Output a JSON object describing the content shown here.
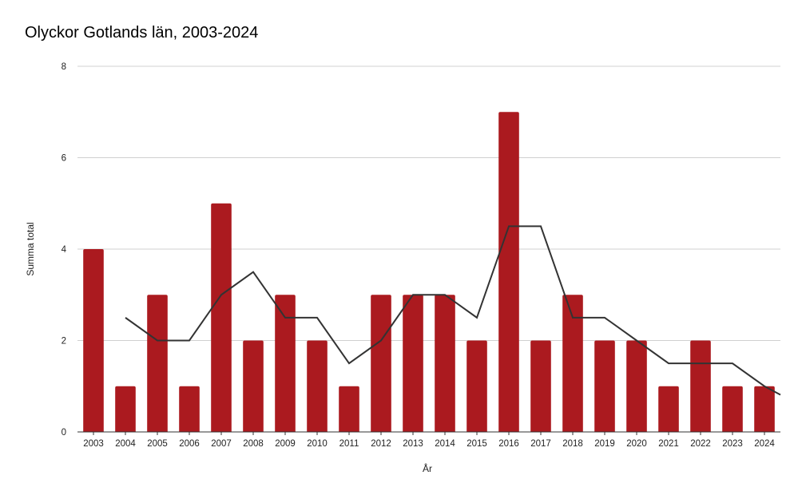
{
  "chart_data": {
    "type": "bar",
    "title": "Olyckor Gotlands län, 2003-2024",
    "xlabel": "År",
    "ylabel": "Summa total",
    "ylim": [
      0,
      8
    ],
    "yticks": [
      0,
      2,
      4,
      6,
      8
    ],
    "grid": true,
    "legend": "none",
    "categories": [
      "2003",
      "2004",
      "2005",
      "2006",
      "2007",
      "2008",
      "2009",
      "2010",
      "2011",
      "2012",
      "2013",
      "2014",
      "2015",
      "2016",
      "2017",
      "2018",
      "2019",
      "2020",
      "2021",
      "2022",
      "2023",
      "2024"
    ],
    "series": [
      {
        "type": "bar",
        "color": "#ab1a1f",
        "values": [
          4,
          1,
          3,
          1,
          5,
          2,
          3,
          2,
          1,
          3,
          3,
          3,
          2,
          7,
          2,
          3,
          2,
          2,
          1,
          2,
          1,
          1
        ]
      },
      {
        "type": "line",
        "color": "#333333",
        "values": [
          null,
          2.5,
          2,
          2,
          3,
          3.5,
          2.5,
          2.5,
          1.5,
          2,
          3,
          3,
          2.5,
          4.5,
          4.5,
          2.5,
          2.5,
          2,
          1.5,
          1.5,
          1.5,
          1
        ]
      }
    ]
  }
}
